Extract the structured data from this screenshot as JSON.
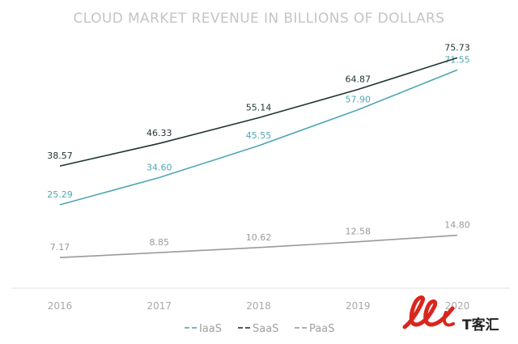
{
  "chart_data": {
    "type": "line",
    "title": "CLOUD MARKET REVENUE IN BILLIONS OF DOLLARS",
    "categories": [
      "2016",
      "2017",
      "2018",
      "2019",
      "2020"
    ],
    "series": [
      {
        "name": "IaaS",
        "values": [
          25.29,
          34.6,
          45.55,
          57.9,
          71.55
        ],
        "color": "#4fa6b3",
        "labels": [
          "25.29",
          "34.60",
          "45.55",
          "57.90",
          "71.55"
        ]
      },
      {
        "name": "SaaS",
        "values": [
          38.57,
          46.33,
          55.14,
          64.87,
          75.73
        ],
        "color": "#1f3533",
        "labels": [
          "38.57",
          "46.33",
          "55.14",
          "64.87",
          "75.73"
        ]
      },
      {
        "name": "PaaS",
        "values": [
          7.17,
          8.85,
          10.62,
          12.58,
          14.8
        ],
        "color": "#9a9a9a",
        "labels": [
          "7.17",
          "8.85",
          "10.62",
          "12.58",
          "14.80"
        ]
      }
    ],
    "ylim": [
      0,
      80
    ],
    "grid": false,
    "legend": "bottom",
    "axis_line_color": "#e2e2e2"
  },
  "legend": {
    "items": [
      {
        "label": "IaaS",
        "color": "#4fa6b3"
      },
      {
        "label": "SaaS",
        "color": "#1f3533"
      },
      {
        "label": "PaaS",
        "color": "#9a9a9a"
      }
    ]
  },
  "watermark": {
    "text": "T客汇",
    "logo_color": "#d9261c"
  }
}
